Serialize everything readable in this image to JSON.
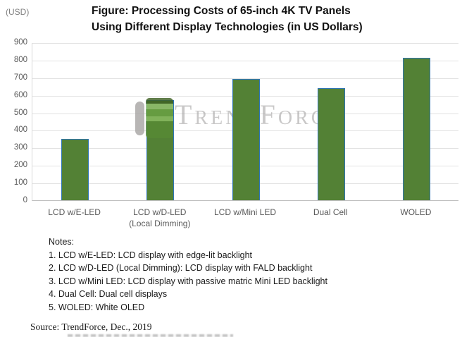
{
  "header": {
    "unit_label": "(USD)",
    "title_line1": "Figure: Processing Costs of 65-inch 4K TV Panels",
    "title_line2": "Using Different Display Technologies (in US Dollars)"
  },
  "chart_data": {
    "type": "bar",
    "title": "Figure: Processing Costs of 65-inch 4K TV Panels Using Different Display Technologies (in US Dollars)",
    "categories": [
      "LCD w/E-LED",
      "LCD w/D-LED (Local Dimming)",
      "LCD w/Mini LED",
      "Dual Cell",
      "WOLED"
    ],
    "category_lines": [
      [
        "LCD w/E-LED"
      ],
      [
        "LCD w/D-LED",
        "(Local Dimming)"
      ],
      [
        "LCD w/Mini LED"
      ],
      [
        "Dual Cell"
      ],
      [
        "WOLED"
      ]
    ],
    "values": [
      350,
      570,
      690,
      640,
      810
    ],
    "xlabel": "",
    "ylabel": "(USD)",
    "ylim": [
      0,
      900
    ],
    "ytick_step": 100,
    "grid": true,
    "legend": "none",
    "bar_fill": "#538135",
    "bar_border": "#2e75b6"
  },
  "watermark": {
    "text": "TrendForce",
    "logo": "trendforce-logo"
  },
  "notes": {
    "heading": "Notes:",
    "items": [
      "1. LCD w/E-LED: LCD display with edge-lit backlight",
      "2. LCD w/D-LED (Local Dimming): LCD display with FALD backlight",
      "3. LCD w/Mini LED: LCD display with passive matric Mini LED backlight",
      "4. Dual Cell: Dual cell displays",
      "5. WOLED: White OLED"
    ]
  },
  "source": "Source: TrendForce, Dec., 2019"
}
